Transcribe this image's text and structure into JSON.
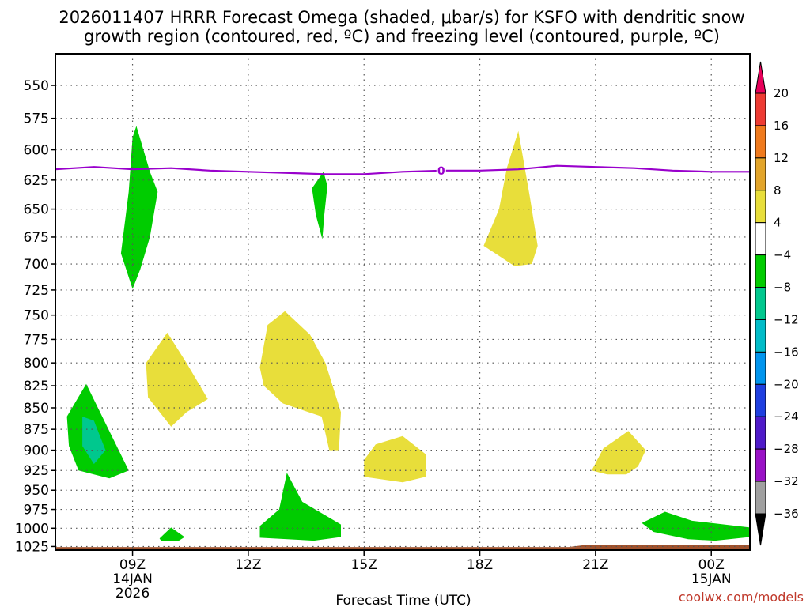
{
  "chart_data": {
    "type": "contour",
    "title_line1": "2026011407 HRRR Forecast Omega (shaded, μbar/s) for KSFO with dendritic snow",
    "title_line2": "growth region (contoured, red, ºC) and freezing level (contoured, purple, ºC)",
    "xlabel": "Forecast Time (UTC)",
    "credit": "coolwx.com/models",
    "x_range_hours": [
      7,
      25
    ],
    "y_range_mb": [
      1030,
      527
    ],
    "x_ticks": [
      {
        "h": 9,
        "label": "09Z",
        "sub1": "14JAN",
        "sub2": "2026"
      },
      {
        "h": 12,
        "label": "12Z",
        "sub1": "",
        "sub2": ""
      },
      {
        "h": 15,
        "label": "15Z",
        "sub1": "",
        "sub2": ""
      },
      {
        "h": 18,
        "label": "18Z",
        "sub1": "",
        "sub2": ""
      },
      {
        "h": 21,
        "label": "21Z",
        "sub1": "",
        "sub2": ""
      },
      {
        "h": 24,
        "label": "00Z",
        "sub1": "15JAN",
        "sub2": ""
      }
    ],
    "y_ticks": [
      "550",
      "575",
      "600",
      "625",
      "650",
      "675",
      "700",
      "725",
      "750",
      "775",
      "800",
      "825",
      "850",
      "875",
      "900",
      "925",
      "950",
      "975",
      "1000",
      "1025"
    ],
    "colorbar": {
      "labels": [
        "20",
        "16",
        "12",
        "8",
        "4",
        "-4",
        "-8",
        "-12",
        "-16",
        "-20",
        "-24",
        "-28",
        "-32",
        "-36"
      ],
      "colors": [
        "#e8005a",
        "#ee3b33",
        "#f07a1d",
        "#e3a52a",
        "#e8de3a",
        "#ffffff",
        "#00cc00",
        "#00c88e",
        "#00bcc8",
        "#0095ee",
        "#1f3fe0",
        "#4f1ac9",
        "#9a12c6",
        "#a0a0a0",
        "#000000"
      ]
    },
    "freezing_level": {
      "label": "0",
      "color": "#9900cc",
      "points": [
        [
          7,
          616
        ],
        [
          8,
          614
        ],
        [
          9,
          616
        ],
        [
          10,
          615
        ],
        [
          11,
          617
        ],
        [
          12,
          618
        ],
        [
          13,
          619
        ],
        [
          14,
          620
        ],
        [
          15,
          620
        ],
        [
          16,
          618
        ],
        [
          17,
          617
        ],
        [
          18,
          617
        ],
        [
          19,
          616
        ],
        [
          20,
          613
        ],
        [
          21,
          614
        ],
        [
          22,
          615
        ],
        [
          23,
          617
        ],
        [
          24,
          618
        ],
        [
          25,
          618
        ]
      ]
    },
    "omega_regions": [
      {
        "value": -6,
        "color": "#00cc00",
        "points": [
          [
            8.9,
            635
          ],
          [
            9.0,
            590
          ],
          [
            9.1,
            581
          ],
          [
            9.45,
            618
          ],
          [
            9.65,
            635
          ],
          [
            9.45,
            675
          ],
          [
            9.2,
            705
          ],
          [
            9.0,
            724
          ],
          [
            8.7,
            690
          ]
        ]
      },
      {
        "value": -6,
        "color": "#00cc00",
        "points": [
          [
            13.65,
            632
          ],
          [
            13.95,
            618
          ],
          [
            14.05,
            630
          ],
          [
            13.97,
            655
          ],
          [
            13.92,
            677
          ],
          [
            13.75,
            655
          ]
        ]
      },
      {
        "value": -6,
        "color": "#00cc00",
        "points": [
          [
            7.3,
            860
          ],
          [
            7.8,
            823
          ],
          [
            8.3,
            868
          ],
          [
            8.9,
            925
          ],
          [
            8.4,
            935
          ],
          [
            7.6,
            925
          ],
          [
            7.35,
            895
          ]
        ]
      },
      {
        "value": -10,
        "color": "#00c88e",
        "points": [
          [
            7.7,
            860
          ],
          [
            8.0,
            865
          ],
          [
            8.3,
            900
          ],
          [
            8.0,
            917
          ],
          [
            7.7,
            895
          ]
        ]
      },
      {
        "value": -6,
        "color": "#00cc00",
        "points": [
          [
            12.3,
            997
          ],
          [
            12.8,
            975
          ],
          [
            13.0,
            928
          ],
          [
            13.4,
            965
          ],
          [
            14.4,
            995
          ],
          [
            14.4,
            1012
          ],
          [
            13.7,
            1017
          ],
          [
            12.3,
            1013
          ]
        ]
      },
      {
        "value": -6,
        "color": "#00cc00",
        "points": [
          [
            9.7,
            1014
          ],
          [
            10.0,
            999
          ],
          [
            10.35,
            1012
          ],
          [
            10.2,
            1017
          ],
          [
            9.75,
            1018
          ]
        ]
      },
      {
        "value": -6,
        "color": "#00cc00",
        "points": [
          [
            22.2,
            993
          ],
          [
            22.8,
            978
          ],
          [
            23.5,
            990
          ],
          [
            25.0,
            999
          ],
          [
            25.0,
            1012
          ],
          [
            24.1,
            1017
          ],
          [
            23.4,
            1015
          ],
          [
            22.5,
            1005
          ]
        ]
      },
      {
        "value": 6,
        "color": "#e8de3a",
        "points": [
          [
            18.1,
            683
          ],
          [
            18.5,
            650
          ],
          [
            18.7,
            615
          ],
          [
            19.0,
            585
          ],
          [
            19.3,
            640
          ],
          [
            19.5,
            683
          ],
          [
            19.35,
            700
          ],
          [
            18.9,
            702
          ]
        ]
      },
      {
        "value": 6,
        "color": "#e8de3a",
        "points": [
          [
            9.35,
            800
          ],
          [
            9.9,
            768
          ],
          [
            10.4,
            800
          ],
          [
            10.95,
            840
          ],
          [
            10.4,
            855
          ],
          [
            10.0,
            872
          ],
          [
            9.4,
            838
          ]
        ]
      },
      {
        "value": 6,
        "color": "#e8de3a",
        "points": [
          [
            12.3,
            805
          ],
          [
            12.5,
            760
          ],
          [
            12.95,
            746
          ],
          [
            13.6,
            770
          ],
          [
            14.0,
            800
          ],
          [
            14.4,
            855
          ],
          [
            14.35,
            900
          ],
          [
            14.1,
            900
          ],
          [
            13.9,
            860
          ],
          [
            12.9,
            845
          ],
          [
            12.4,
            825
          ]
        ]
      },
      {
        "value": 6,
        "color": "#e8de3a",
        "points": [
          [
            15.0,
            912
          ],
          [
            15.3,
            893
          ],
          [
            16.0,
            883
          ],
          [
            16.6,
            905
          ],
          [
            16.6,
            933
          ],
          [
            16.0,
            940
          ],
          [
            15.0,
            933
          ]
        ]
      },
      {
        "value": 6,
        "color": "#e8de3a",
        "points": [
          [
            20.9,
            925
          ],
          [
            21.2,
            898
          ],
          [
            21.85,
            877
          ],
          [
            22.3,
            900
          ],
          [
            22.1,
            920
          ],
          [
            21.8,
            930
          ],
          [
            21.3,
            930
          ]
        ]
      }
    ],
    "ground_line_mb": 1028,
    "ground_color": "#a0522d"
  }
}
